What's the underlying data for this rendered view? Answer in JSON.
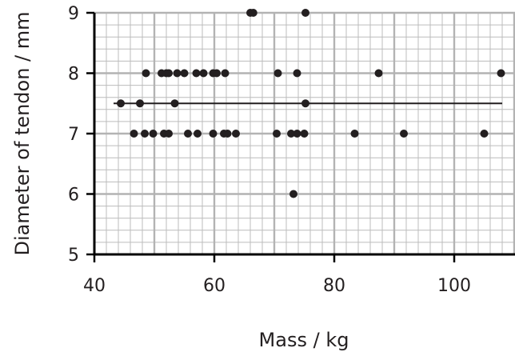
{
  "chart_data": {
    "type": "scatter",
    "title": "",
    "xlabel": "Mass / kg",
    "ylabel": "Diameter of tendon / mm",
    "xlim": [
      40,
      108
    ],
    "ylim": [
      5,
      9
    ],
    "x_ticks": [
      40,
      60,
      80,
      100
    ],
    "y_ticks": [
      5,
      6,
      7,
      8,
      9
    ],
    "grid": true,
    "colors": {
      "points": "#231f20",
      "major_grid": "#b3b3b3",
      "minor_grid": "#bcbcbc",
      "axis": "#000000",
      "line": "#231f20"
    },
    "points": [
      {
        "x": 66,
        "y": 9
      },
      {
        "x": 66.5,
        "y": 9
      },
      {
        "x": 75.2,
        "y": 9
      },
      {
        "x": 48.6,
        "y": 8
      },
      {
        "x": 51.2,
        "y": 8
      },
      {
        "x": 52,
        "y": 8
      },
      {
        "x": 52.4,
        "y": 8
      },
      {
        "x": 53.8,
        "y": 8
      },
      {
        "x": 55,
        "y": 8
      },
      {
        "x": 57,
        "y": 8
      },
      {
        "x": 58.2,
        "y": 8
      },
      {
        "x": 59.8,
        "y": 8
      },
      {
        "x": 60.4,
        "y": 8
      },
      {
        "x": 61.8,
        "y": 8
      },
      {
        "x": 70.6,
        "y": 8
      },
      {
        "x": 73.8,
        "y": 8
      },
      {
        "x": 87.4,
        "y": 8
      },
      {
        "x": 107.8,
        "y": 8
      },
      {
        "x": 44.4,
        "y": 7.5
      },
      {
        "x": 47.6,
        "y": 7.5
      },
      {
        "x": 53.4,
        "y": 7.5
      },
      {
        "x": 75.2,
        "y": 7.5
      },
      {
        "x": 46.6,
        "y": 7
      },
      {
        "x": 48.4,
        "y": 7
      },
      {
        "x": 49.8,
        "y": 7
      },
      {
        "x": 51.6,
        "y": 7
      },
      {
        "x": 52.4,
        "y": 7
      },
      {
        "x": 55.6,
        "y": 7
      },
      {
        "x": 57.2,
        "y": 7
      },
      {
        "x": 59.8,
        "y": 7
      },
      {
        "x": 61.6,
        "y": 7
      },
      {
        "x": 62.2,
        "y": 7
      },
      {
        "x": 63.6,
        "y": 7
      },
      {
        "x": 70.4,
        "y": 7
      },
      {
        "x": 72.8,
        "y": 7
      },
      {
        "x": 73.8,
        "y": 7
      },
      {
        "x": 75,
        "y": 7
      },
      {
        "x": 83.4,
        "y": 7
      },
      {
        "x": 91.6,
        "y": 7
      },
      {
        "x": 105,
        "y": 7
      },
      {
        "x": 73.2,
        "y": 6
      }
    ],
    "lines": [
      {
        "x": [
          43.2,
          108
        ],
        "y": [
          7.5,
          7.5
        ]
      }
    ]
  }
}
